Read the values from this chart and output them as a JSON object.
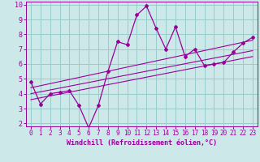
{
  "xlabel": "Windchill (Refroidissement éolien,°C)",
  "xlim": [
    -0.5,
    23.5
  ],
  "ylim": [
    1.8,
    10.2
  ],
  "xticks": [
    0,
    1,
    2,
    3,
    4,
    5,
    6,
    7,
    8,
    9,
    10,
    11,
    12,
    13,
    14,
    15,
    16,
    17,
    18,
    19,
    20,
    21,
    22,
    23
  ],
  "yticks": [
    2,
    3,
    4,
    5,
    6,
    7,
    8,
    9,
    10
  ],
  "bg_color": "#cce8e8",
  "line_color": "#990099",
  "grid_color": "#99cccc",
  "main_series_x": [
    0,
    1,
    2,
    3,
    4,
    5,
    6,
    7,
    8,
    9,
    10,
    11,
    12,
    13,
    14,
    15,
    16,
    17,
    18,
    19,
    20,
    21,
    22,
    23
  ],
  "main_series_y": [
    4.8,
    3.3,
    4.0,
    4.1,
    4.2,
    3.2,
    1.7,
    3.2,
    5.5,
    7.5,
    7.3,
    9.3,
    9.9,
    8.4,
    7.0,
    8.5,
    6.5,
    7.0,
    5.9,
    6.0,
    6.1,
    6.8,
    7.4,
    7.8
  ],
  "reg_lines": [
    {
      "x": [
        0,
        23
      ],
      "y": [
        3.6,
        6.5
      ]
    },
    {
      "x": [
        0,
        23
      ],
      "y": [
        4.0,
        6.9
      ]
    },
    {
      "x": [
        0,
        23
      ],
      "y": [
        4.4,
        7.6
      ]
    }
  ],
  "tick_fontsize": 5.5,
  "xlabel_fontsize": 6.0
}
